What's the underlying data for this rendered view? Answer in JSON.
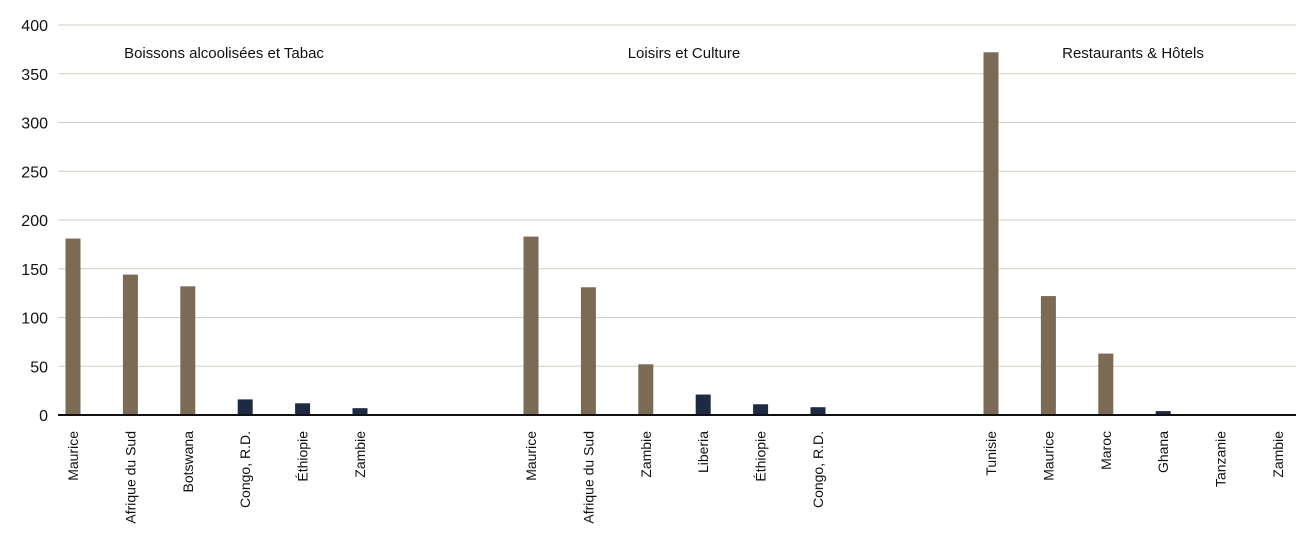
{
  "chart_data": {
    "type": "bar",
    "ylim": [
      0,
      400
    ],
    "yticks": [
      0,
      50,
      100,
      150,
      200,
      250,
      300,
      350,
      400
    ],
    "grid": true,
    "colors": {
      "high": "#7b6a55",
      "low": "#1e2a44"
    },
    "groups": [
      {
        "title": "Boissons alcoolisées et Tabac",
        "bars": [
          {
            "category": "Maurice",
            "value": 181,
            "color": "high"
          },
          {
            "category": "Afrique du Sud",
            "value": 144,
            "color": "high"
          },
          {
            "category": "Botswana",
            "value": 132,
            "color": "high"
          },
          {
            "category": "Congo, R.D.",
            "value": 16,
            "color": "low"
          },
          {
            "category": "Éthiopie",
            "value": 12,
            "color": "low"
          },
          {
            "category": "Zambie",
            "value": 7,
            "color": "low"
          }
        ]
      },
      {
        "title": "Loisirs et Culture",
        "bars": [
          {
            "category": "Maurice",
            "value": 183,
            "color": "high"
          },
          {
            "category": "Afrique du Sud",
            "value": 131,
            "color": "high"
          },
          {
            "category": "Zambie",
            "value": 52,
            "color": "high"
          },
          {
            "category": "Liberia",
            "value": 21,
            "color": "low"
          },
          {
            "category": "Éthiopie",
            "value": 11,
            "color": "low"
          },
          {
            "category": "Congo, R.D.",
            "value": 8,
            "color": "low"
          }
        ]
      },
      {
        "title": "Restaurants & Hôtels",
        "bars": [
          {
            "category": "Tunisie",
            "value": 372,
            "color": "high"
          },
          {
            "category": "Maurice",
            "value": 122,
            "color": "high"
          },
          {
            "category": "Maroc",
            "value": 63,
            "color": "high"
          },
          {
            "category": "Ghana",
            "value": 4,
            "color": "low"
          },
          {
            "category": "Tanzanie",
            "value": 0.5,
            "color": "low"
          },
          {
            "category": "Zambie",
            "value": 0.3,
            "color": "low"
          }
        ]
      }
    ]
  }
}
